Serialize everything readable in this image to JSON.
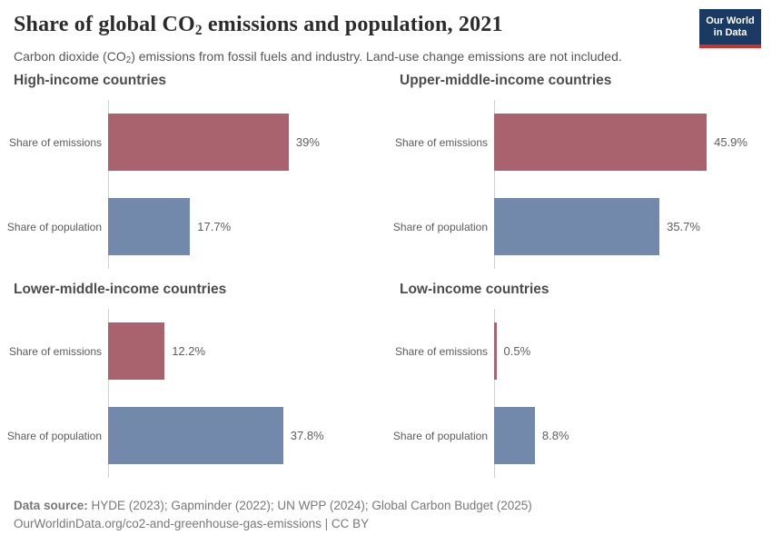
{
  "header": {
    "title_prefix": "Share of global CO",
    "title_sub": "2",
    "title_suffix": " emissions and population, 2021",
    "subtitle_prefix": "Carbon dioxide (CO",
    "subtitle_sub": "2",
    "subtitle_suffix": ") emissions from fossil fuels and industry. Land-use change emissions are not included.",
    "logo": {
      "line1": "Our World",
      "line2": "in Data",
      "bg_color": "#1b3a63",
      "accent_color": "#cf3129"
    }
  },
  "chart_data": {
    "type": "bar",
    "orientation": "horizontal",
    "title": "Share of global CO₂ emissions and population, 2021",
    "subtitle": "Carbon dioxide (CO₂) emissions from fossil fuels and industry. Land-use change emissions are not included.",
    "categories": [
      "Share of emissions",
      "Share of population"
    ],
    "unit": "%",
    "xlim": [
      0,
      50
    ],
    "grid": false,
    "legend": "none",
    "series_colors": {
      "emissions": "#a8636f",
      "population": "#7289ac"
    },
    "facets": [
      {
        "title": "High-income countries",
        "values": [
          39,
          17.7
        ],
        "value_labels": [
          "39%",
          "17.7%"
        ]
      },
      {
        "title": "Upper-middle-income countries",
        "values": [
          45.9,
          35.7
        ],
        "value_labels": [
          "45.9%",
          "35.7%"
        ]
      },
      {
        "title": "Lower-middle-income countries",
        "values": [
          12.2,
          37.8
        ],
        "value_labels": [
          "12.2%",
          "37.8%"
        ]
      },
      {
        "title": "Low-income countries",
        "values": [
          0.5,
          8.8
        ],
        "value_labels": [
          "0.5%",
          "8.8%"
        ]
      }
    ]
  },
  "footer": {
    "source_label": "Data source:",
    "source_text": " HYDE (2023); Gapminder (2022); UN WPP (2024); Global Carbon Budget (2025)",
    "link_line": "OurWorldinData.org/co2-and-greenhouse-gas-emissions | CC BY"
  }
}
